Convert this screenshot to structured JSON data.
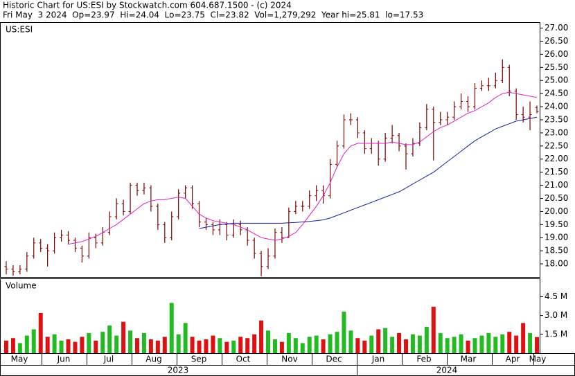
{
  "chart_data": {
    "type": "ohlc",
    "title": "Historic Chart for US:ESI by Stockwatch.com 604.687.1500 - (c) 2024",
    "subtitle": "Fri May  3 2024  Op=23.97  Hi=24.04  Lo=23.75  Cl=23.82  Vol=1,279,292  Year hi=25.81  lo=17.53",
    "symbol_label": "US:ESI",
    "color": "#7a0000",
    "x_axis": {
      "months": [
        "May",
        "Jun",
        "Jul",
        "Aug",
        "Sep",
        "Oct",
        "Nov",
        "Dec",
        "Jan",
        "Feb",
        "Mar",
        "Apr",
        "May"
      ],
      "years": [
        "2023",
        "2024"
      ]
    },
    "open": [
      17.9,
      17.8,
      17.7,
      17.8,
      18.3,
      18.8,
      18.6,
      18.5,
      19.0,
      19.1,
      18.9,
      18.6,
      18.3,
      19.0,
      18.8,
      19.2,
      19.8,
      20.3,
      20.0,
      21.0,
      20.8,
      20.9,
      20.2,
      19.5,
      19.0,
      19.8,
      20.7,
      20.9,
      20.3,
      19.6,
      19.5,
      19.3,
      19.5,
      19.1,
      19.5,
      19.3,
      18.9,
      18.4,
      17.9,
      18.3,
      19.2,
      19.0,
      20.0,
      20.2,
      20.2,
      20.6,
      20.8,
      20.6,
      21.8,
      22.5,
      23.5,
      23.5,
      23.0,
      22.4,
      22.6,
      22.0,
      22.8,
      22.9,
      22.5,
      22.2,
      22.6,
      23.2,
      23.9,
      23.4,
      23.5,
      23.6,
      24.0,
      24.2,
      24.0,
      24.7,
      24.8,
      24.8,
      25.0,
      25.5,
      24.6,
      23.7,
      23.6,
      23.97
    ],
    "high": [
      18.1,
      17.95,
      17.95,
      18.45,
      19.0,
      18.95,
      18.75,
      19.2,
      19.3,
      19.25,
      19.0,
      18.7,
      19.2,
      19.15,
      19.4,
      20.0,
      20.5,
      20.45,
      21.1,
      21.1,
      21.1,
      21.0,
      20.3,
      19.6,
      20.0,
      20.85,
      21.0,
      21.0,
      20.4,
      19.75,
      19.6,
      19.7,
      19.6,
      19.7,
      19.65,
      19.4,
      19.0,
      18.5,
      18.6,
      19.35,
      19.4,
      20.15,
      20.4,
      20.4,
      20.8,
      21.0,
      21.0,
      22.0,
      22.7,
      23.7,
      23.75,
      23.6,
      23.1,
      22.8,
      22.7,
      23.0,
      23.3,
      23.0,
      22.6,
      22.8,
      23.4,
      24.1,
      24.0,
      23.8,
      23.8,
      24.2,
      24.5,
      24.4,
      24.9,
      25.0,
      25.1,
      25.3,
      25.81,
      25.6,
      24.7,
      24.0,
      24.2,
      24.04
    ],
    "low": [
      17.6,
      17.55,
      17.6,
      17.7,
      18.2,
      18.45,
      17.9,
      18.4,
      18.85,
      18.75,
      18.45,
      18.05,
      18.2,
      18.6,
      18.7,
      19.1,
      19.7,
      19.85,
      19.9,
      20.6,
      20.65,
      20.0,
      19.3,
      18.8,
      18.9,
      19.7,
      20.5,
      20.1,
      19.4,
      19.3,
      19.1,
      19.1,
      18.9,
      19.0,
      19.1,
      18.7,
      18.2,
      17.53,
      17.8,
      18.2,
      18.8,
      19.0,
      19.9,
      20.0,
      20.1,
      20.4,
      20.3,
      20.5,
      21.7,
      22.4,
      23.3,
      22.8,
      22.2,
      22.2,
      21.75,
      21.9,
      22.6,
      22.3,
      21.6,
      22.1,
      22.5,
      23.1,
      21.95,
      23.3,
      23.3,
      23.5,
      23.9,
      23.8,
      23.9,
      24.6,
      24.6,
      24.7,
      24.9,
      24.4,
      23.5,
      23.4,
      23.1,
      23.75
    ],
    "close": [
      17.8,
      17.7,
      17.8,
      18.3,
      18.8,
      18.6,
      18.5,
      19.0,
      19.1,
      18.9,
      18.6,
      18.3,
      19.0,
      18.8,
      19.2,
      19.8,
      20.3,
      20.0,
      21.0,
      20.8,
      20.9,
      20.2,
      19.5,
      19.0,
      19.8,
      20.7,
      20.9,
      20.3,
      19.6,
      19.5,
      19.3,
      19.5,
      19.1,
      19.5,
      19.3,
      18.9,
      18.4,
      17.9,
      18.3,
      19.2,
      19.0,
      20.0,
      20.2,
      20.2,
      20.6,
      20.8,
      20.6,
      21.8,
      22.5,
      23.5,
      23.5,
      23.0,
      22.4,
      22.6,
      22.0,
      22.8,
      22.9,
      22.5,
      22.2,
      22.6,
      23.2,
      23.9,
      23.4,
      23.5,
      23.6,
      24.0,
      24.2,
      24.0,
      24.7,
      24.8,
      24.8,
      25.0,
      25.5,
      24.6,
      23.7,
      23.6,
      23.7,
      23.82
    ],
    "moving_averages": [
      {
        "color": "#e020c0",
        "values": [
          null,
          null,
          null,
          null,
          null,
          null,
          null,
          null,
          null,
          18.75,
          18.8,
          18.85,
          18.95,
          19.05,
          19.2,
          19.35,
          19.5,
          19.7,
          19.9,
          20.1,
          20.3,
          20.4,
          20.45,
          20.45,
          20.5,
          20.55,
          20.5,
          20.2,
          19.9,
          19.75,
          19.65,
          19.6,
          19.55,
          19.5,
          19.4,
          19.3,
          19.15,
          19.0,
          18.95,
          18.9,
          18.95,
          19.05,
          19.2,
          19.5,
          19.85,
          20.2,
          20.6,
          21.1,
          21.7,
          22.2,
          22.5,
          22.6,
          22.6,
          22.6,
          22.6,
          22.6,
          22.65,
          22.6,
          22.55,
          22.55,
          22.65,
          22.85,
          23.05,
          23.2,
          23.3,
          23.45,
          23.6,
          23.75,
          23.85,
          24.0,
          24.15,
          24.35,
          24.5,
          24.55,
          24.5,
          24.45,
          24.4,
          24.35
        ]
      },
      {
        "color": "#1020a0",
        "values": [
          null,
          null,
          null,
          null,
          null,
          null,
          null,
          null,
          null,
          null,
          null,
          null,
          null,
          null,
          null,
          null,
          null,
          null,
          null,
          null,
          null,
          null,
          null,
          null,
          null,
          null,
          null,
          null,
          19.35,
          19.4,
          19.45,
          19.5,
          19.52,
          19.55,
          19.55,
          19.55,
          19.55,
          19.55,
          19.55,
          19.55,
          19.55,
          19.57,
          19.58,
          19.6,
          19.62,
          19.65,
          19.68,
          19.75,
          19.85,
          19.95,
          20.05,
          20.15,
          20.25,
          20.35,
          20.45,
          20.55,
          20.65,
          20.75,
          20.9,
          21.05,
          21.2,
          21.35,
          21.5,
          21.7,
          21.9,
          22.1,
          22.3,
          22.5,
          22.7,
          22.85,
          23.0,
          23.15,
          23.25,
          23.35,
          23.45,
          23.5,
          23.55,
          23.6
        ]
      }
    ],
    "ylim": [
      17.5,
      27.2
    ],
    "yticks": [
      {
        "value": 18,
        "label": "18.00"
      },
      {
        "value": 18.5,
        "label": "18.50"
      },
      {
        "value": 19,
        "label": "19.00"
      },
      {
        "value": 19.5,
        "label": "19.50"
      },
      {
        "value": 20,
        "label": "20.00"
      },
      {
        "value": 20.5,
        "label": "20.50"
      },
      {
        "value": 21,
        "label": "21.00"
      },
      {
        "value": 21.5,
        "label": "21.50"
      },
      {
        "value": 22,
        "label": "22.00"
      },
      {
        "value": 22.5,
        "label": "22.50"
      },
      {
        "value": 23,
        "label": "23.00"
      },
      {
        "value": 23.5,
        "label": "23.50"
      },
      {
        "value": 24,
        "label": "24.00"
      },
      {
        "value": 24.5,
        "label": "24.50"
      },
      {
        "value": 25,
        "label": "25.00"
      },
      {
        "value": 25.5,
        "label": "25.50"
      },
      {
        "value": 26,
        "label": "26.00"
      },
      {
        "value": 26.5,
        "label": "26.50"
      },
      {
        "value": 27,
        "label": "27.00"
      }
    ],
    "volume": {
      "label": "Volume",
      "up_color": "#22bb22",
      "down_color": "#dd1111",
      "values": [
        1.0,
        1.2,
        0.8,
        1.4,
        1.9,
        3.2,
        1.3,
        1.5,
        1.0,
        1.1,
        0.9,
        1.3,
        1.6,
        1.0,
        1.7,
        2.2,
        1.4,
        2.5,
        1.8,
        1.2,
        1.6,
        1.1,
        1.0,
        1.3,
        4.0,
        1.5,
        2.4,
        1.3,
        1.0,
        1.1,
        1.4,
        1.2,
        0.9,
        1.0,
        1.3,
        1.2,
        1.5,
        2.6,
        1.8,
        1.1,
        0.9,
        1.6,
        1.2,
        0.8,
        1.3,
        1.4,
        1.1,
        1.5,
        1.7,
        3.3,
        1.8,
        1.2,
        1.0,
        1.4,
        1.9,
        2.0,
        1.3,
        1.6,
        1.1,
        1.5,
        1.4,
        2.1,
        3.7,
        1.6,
        1.2,
        1.3,
        1.5,
        1.0,
        1.2,
        1.4,
        1.6,
        1.3,
        1.5,
        1.7,
        1.4,
        2.4,
        1.6,
        1.28
      ],
      "ylim": [
        0,
        5.9
      ],
      "yticks": [
        {
          "value": 1.5,
          "label": "1.5 M"
        },
        {
          "value": 3.0,
          "label": "3.0 M"
        },
        {
          "value": 4.5,
          "label": "4.5 M"
        }
      ]
    }
  }
}
